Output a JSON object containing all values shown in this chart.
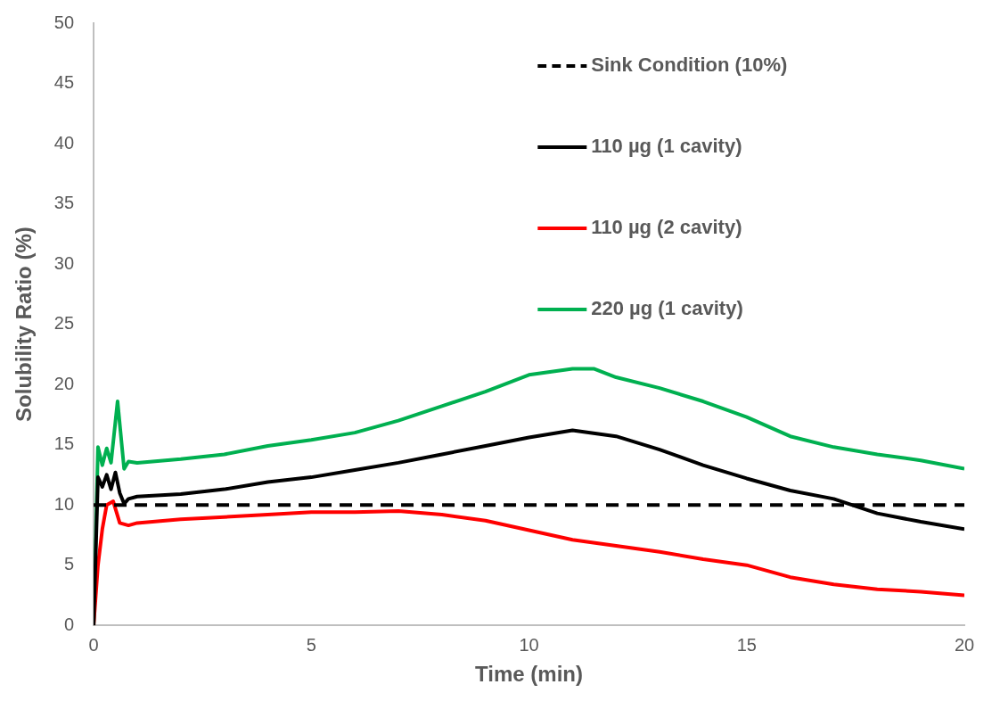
{
  "chart_data": {
    "type": "line",
    "xlabel": "Time (min)",
    "ylabel": "Solubility Ratio (%)",
    "xlim": [
      0,
      20
    ],
    "xticks": [
      0,
      5,
      10,
      15,
      20
    ],
    "ylim": [
      0,
      50
    ],
    "yticks": [
      0,
      5,
      10,
      15,
      20,
      25,
      30,
      35,
      40,
      45,
      50
    ],
    "grid": false,
    "legend": "top right",
    "marker": "none",
    "series": [
      {
        "name": "Sink Condition (10%)",
        "color": "#000000",
        "line_style": "dashed",
        "x": [
          0,
          20
        ],
        "values": [
          10,
          10
        ]
      },
      {
        "name": "110 µg (1 cavity)",
        "color": "#000000",
        "line_style": "solid",
        "x": [
          0,
          0.1,
          0.2,
          0.3,
          0.4,
          0.5,
          0.6,
          0.7,
          0.8,
          1,
          2,
          3,
          4,
          5,
          6,
          7,
          8,
          9,
          10,
          11,
          12,
          13,
          14,
          15,
          16,
          17,
          18,
          19,
          20
        ],
        "values": [
          0,
          12.3,
          11.5,
          12.5,
          11.3,
          12.7,
          11,
          10.1,
          10.5,
          10.7,
          10.9,
          11.3,
          11.9,
          12.3,
          12.9,
          13.5,
          14.2,
          14.9,
          15.6,
          16.2,
          15.7,
          14.6,
          13.3,
          12.2,
          11.2,
          10.5,
          9.3,
          8.6,
          8
        ]
      },
      {
        "name": "110 µg (2 cavity)",
        "color": "#ff0000",
        "line_style": "solid",
        "x": [
          0,
          0.1,
          0.2,
          0.3,
          0.45,
          0.6,
          0.8,
          1,
          2,
          3,
          4,
          5,
          6,
          7,
          8,
          9,
          10,
          11,
          12,
          13,
          14,
          15,
          16,
          17,
          18,
          19,
          20
        ],
        "values": [
          0,
          5,
          8,
          10,
          10.3,
          8.5,
          8.3,
          8.5,
          8.8,
          9,
          9.2,
          9.4,
          9.4,
          9.5,
          9.2,
          8.7,
          7.9,
          7.1,
          6.6,
          6.1,
          5.5,
          5,
          4,
          3.4,
          3,
          2.8,
          2.5
        ]
      },
      {
        "name": "220 µg (1 cavity)",
        "color": "#00b050",
        "line_style": "solid",
        "x": [
          0,
          0.1,
          0.2,
          0.3,
          0.4,
          0.55,
          0.7,
          0.8,
          1,
          2,
          3,
          4,
          5,
          6,
          7,
          8,
          9,
          10,
          11,
          11.5,
          12,
          13,
          14,
          15,
          16,
          17,
          18,
          19,
          20
        ],
        "values": [
          0,
          14.8,
          13.3,
          14.7,
          13.5,
          18.6,
          13,
          13.6,
          13.5,
          13.8,
          14.2,
          14.9,
          15.4,
          16,
          17,
          18.2,
          19.4,
          20.8,
          21.3,
          21.3,
          20.6,
          19.7,
          18.6,
          17.3,
          15.7,
          14.8,
          14.2,
          13.7,
          13
        ]
      }
    ]
  }
}
